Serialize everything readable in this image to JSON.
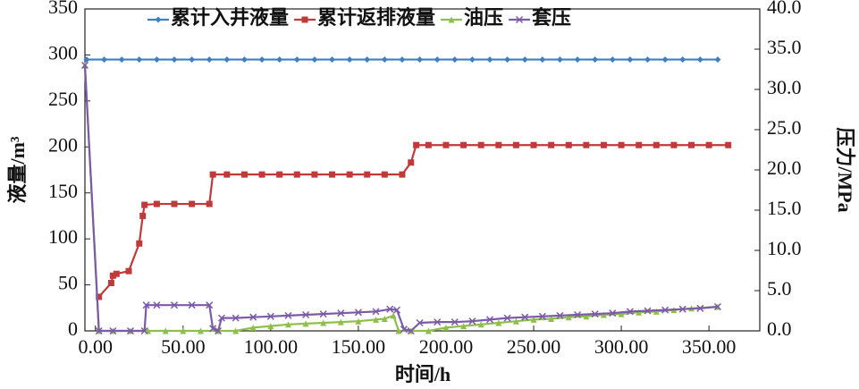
{
  "chart_data": {
    "type": "line",
    "xlabel": "时间/h",
    "ylabel": "液量/m³",
    "y2label": "压力/MPa",
    "xlim": [
      -6,
      379
    ],
    "xticks": [
      {
        "value": 0,
        "label": "0.00"
      },
      {
        "value": 50,
        "label": "50.00"
      },
      {
        "value": 100,
        "label": "100.00"
      },
      {
        "value": 150,
        "label": "150.00"
      },
      {
        "value": 200,
        "label": "200.00"
      },
      {
        "value": 250,
        "label": "250.00"
      },
      {
        "value": 300,
        "label": "300.00"
      },
      {
        "value": 350,
        "label": "350.00"
      }
    ],
    "ylim": [
      0,
      350
    ],
    "yticks": [
      0,
      50,
      100,
      150,
      200,
      250,
      300,
      350
    ],
    "y2lim": [
      0,
      40
    ],
    "y2ticks": [
      {
        "value": 0,
        "label": "0.0"
      },
      {
        "value": 5,
        "label": "5.0"
      },
      {
        "value": 10,
        "label": "10.0"
      },
      {
        "value": 15,
        "label": "15.0"
      },
      {
        "value": 20,
        "label": "20.0"
      },
      {
        "value": 25,
        "label": "25.0"
      },
      {
        "value": 30,
        "label": "30.0"
      },
      {
        "value": 35,
        "label": "35.0"
      },
      {
        "value": 40,
        "label": "40.0"
      }
    ],
    "legend": "top",
    "series": [
      {
        "name": "累计入井液量",
        "color": "#3f7fc0",
        "marker": "diamond",
        "x": [
          -5,
          5,
          15,
          25,
          35,
          45,
          55,
          65,
          75,
          85,
          95,
          105,
          115,
          125,
          135,
          145,
          155,
          165,
          175,
          185,
          195,
          205,
          215,
          225,
          235,
          245,
          255,
          265,
          275,
          285,
          295,
          305,
          315,
          325,
          335,
          345,
          355
        ],
        "values": [
          295,
          295,
          295,
          295,
          295,
          295,
          295,
          295,
          295,
          295,
          295,
          295,
          295,
          295,
          295,
          295,
          295,
          295,
          295,
          295,
          295,
          295,
          295,
          295,
          295,
          295,
          295,
          295,
          295,
          295,
          295,
          295,
          295,
          295,
          295,
          295,
          295
        ]
      },
      {
        "name": "累计返排液量",
        "color": "#c0393b",
        "marker": "square",
        "x": [
          2,
          9,
          10,
          12,
          19,
          25,
          27,
          28,
          35,
          45,
          55,
          65,
          67,
          75,
          85,
          95,
          105,
          115,
          125,
          135,
          145,
          155,
          165,
          175,
          180,
          183,
          190,
          200,
          210,
          220,
          230,
          240,
          250,
          260,
          270,
          280,
          290,
          300,
          310,
          320,
          330,
          340,
          350,
          361
        ],
        "values": [
          37,
          52,
          60,
          62,
          65,
          95,
          125,
          137,
          138,
          138,
          138,
          138,
          170,
          170,
          170,
          170,
          170,
          170,
          170,
          170,
          170,
          170,
          170,
          170,
          183,
          202,
          202,
          202,
          202,
          202,
          202,
          202,
          202,
          202,
          202,
          202,
          202,
          202,
          202,
          202,
          202,
          202,
          202,
          202
        ]
      },
      {
        "name": "油压",
        "color": "#8fbf4a",
        "marker": "triangle",
        "axis": "y2",
        "x": [
          -6,
          2,
          10,
          20,
          30,
          40,
          50,
          60,
          70,
          80,
          90,
          100,
          110,
          120,
          130,
          140,
          150,
          160,
          165,
          170,
          173,
          180,
          190,
          200,
          210,
          220,
          230,
          240,
          250,
          260,
          270,
          280,
          290,
          300,
          310,
          320,
          330,
          340,
          355
        ],
        "values": [
          33,
          0,
          0,
          0,
          0,
          0,
          0,
          0,
          0,
          0,
          0.4,
          0.6,
          0.8,
          0.9,
          1.0,
          1.1,
          1.2,
          1.4,
          1.5,
          1.9,
          0,
          0,
          0,
          0.4,
          0.6,
          0.8,
          1.0,
          1.2,
          1.4,
          1.5,
          1.7,
          1.8,
          2.0,
          2.1,
          2.3,
          2.4,
          2.6,
          2.8,
          3.0
        ]
      },
      {
        "name": "套压",
        "color": "#7b5ba8",
        "marker": "cross",
        "axis": "y2",
        "x": [
          -6,
          2,
          10,
          20,
          28,
          29,
          35,
          45,
          55,
          65,
          67,
          70,
          72,
          80,
          90,
          100,
          110,
          120,
          130,
          140,
          150,
          160,
          168,
          172,
          176,
          180,
          185,
          195,
          205,
          215,
          225,
          235,
          245,
          255,
          265,
          275,
          285,
          295,
          305,
          315,
          325,
          335,
          345,
          355
        ],
        "values": [
          33,
          0,
          0,
          0,
          0,
          3.2,
          3.2,
          3.2,
          3.2,
          3.2,
          0.3,
          0,
          1.6,
          1.6,
          1.7,
          1.8,
          1.9,
          2.0,
          2.1,
          2.2,
          2.3,
          2.4,
          2.7,
          2.6,
          0.2,
          0,
          1.0,
          1.1,
          1.1,
          1.2,
          1.4,
          1.6,
          1.7,
          1.8,
          1.9,
          2.0,
          2.1,
          2.2,
          2.4,
          2.5,
          2.6,
          2.7,
          2.8,
          3.0
        ]
      }
    ]
  }
}
